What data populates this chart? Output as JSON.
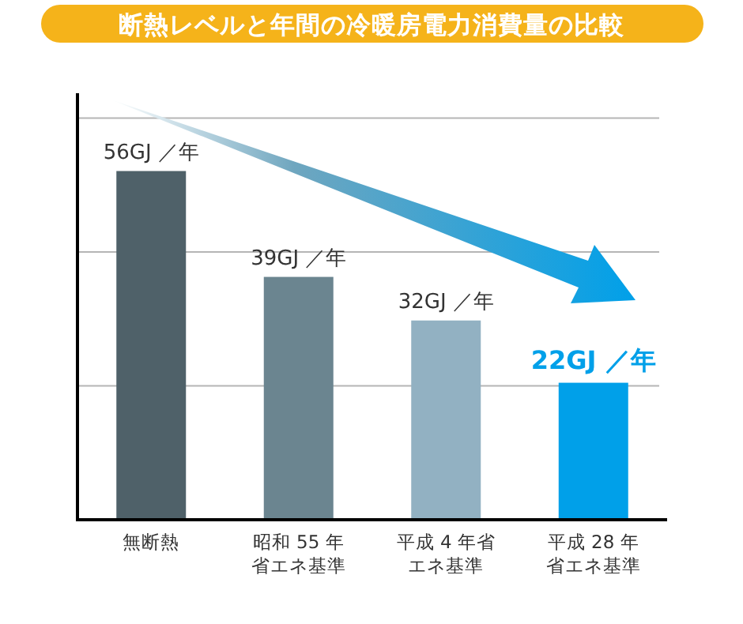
{
  "chart_data": {
    "type": "bar",
    "title": "断熱レベルと年間の冷暖房電力消費量の比較",
    "categories": [
      "無断熱",
      "昭和 55 年省エネ基準",
      "平成 4 年省エネ基準",
      "平成 28 年省エネ基準"
    ],
    "values": [
      56,
      39,
      32,
      22
    ],
    "colors": [
      "#4f6169",
      "#6b8590",
      "#92b1c2",
      "#00a0e9"
    ],
    "value_labels": [
      "56GJ ／年",
      "39GJ ／年",
      "32GJ ／年",
      "22GJ ／年"
    ],
    "ylim": [
      0,
      68.5
    ],
    "yticks": [
      {
        "value": 21.5,
        "label": null
      },
      {
        "value": 43,
        "label": null
      },
      {
        "value": 64.5,
        "label": null
      }
    ],
    "grid": "y",
    "tick_labels": "x"
  }
}
